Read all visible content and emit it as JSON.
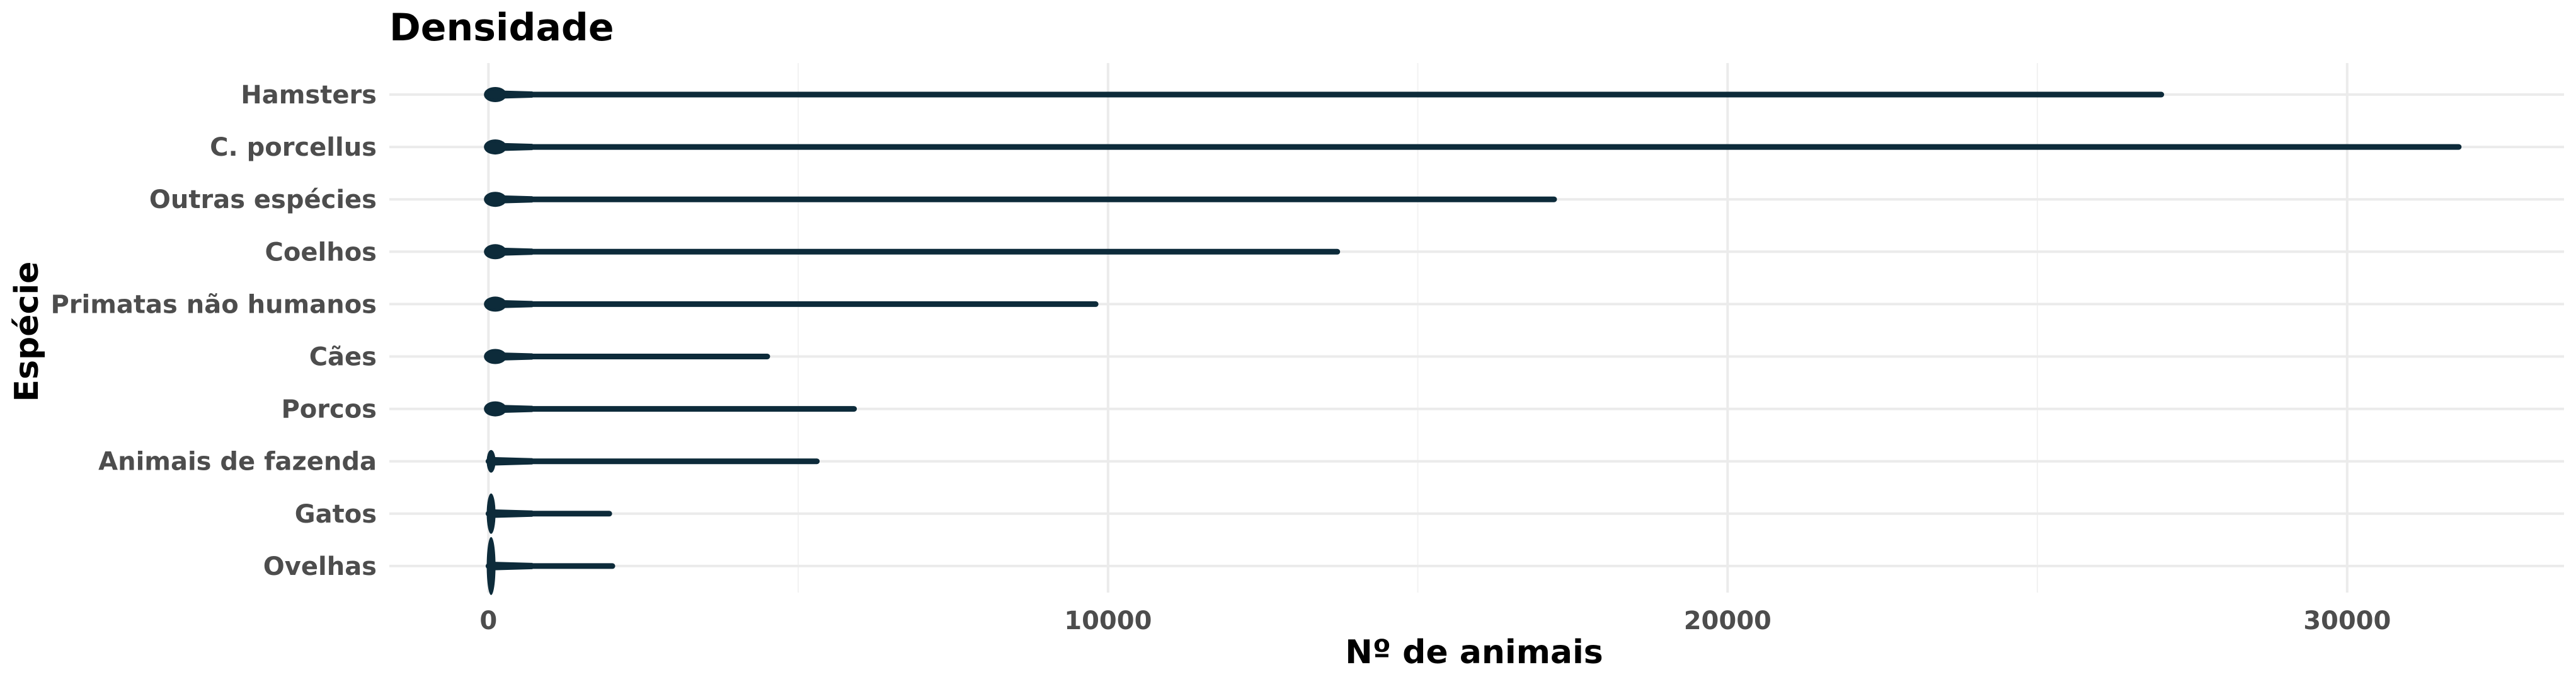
{
  "chart_data": {
    "type": "violin",
    "title": "Densidade",
    "xlabel": "Nº de animais",
    "ylabel": "Espécie",
    "xlim": [
      -1600,
      33500
    ],
    "xticks": [
      0,
      10000,
      20000,
      30000
    ],
    "xtick_labels": [
      "0",
      "10000",
      "20000",
      "30000"
    ],
    "categories": [
      "Hamsters",
      "C. porcellus",
      "Outras espécies",
      "Coelhos",
      "Primatas não humanos",
      "Cães",
      "Porcos",
      "Animais de fazenda",
      "Gatos",
      "Ovelhas"
    ],
    "min_values": [
      0,
      0,
      0,
      0,
      0,
      0,
      0,
      0,
      0,
      0
    ],
    "max_values": [
      27000,
      31800,
      17200,
      13700,
      9800,
      4500,
      5900,
      5300,
      1950,
      2000
    ],
    "grid": true,
    "legend": "none",
    "color": "#0d2b3a"
  }
}
